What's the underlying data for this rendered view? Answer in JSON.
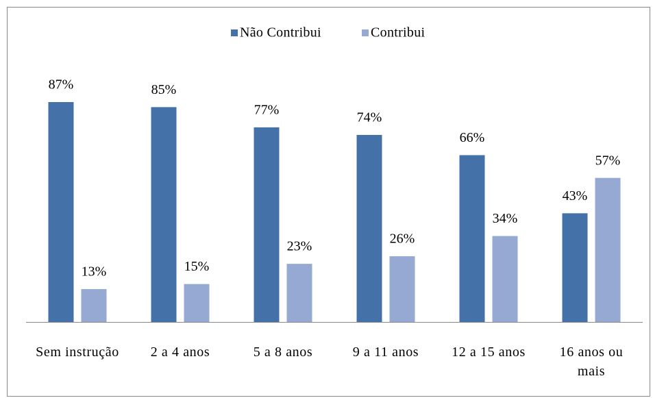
{
  "chart_data": {
    "type": "bar",
    "categories": [
      "Sem instrução",
      "2 a 4 anos",
      "5 a 8 anos",
      "9 a 11 anos",
      "12 a 15 anos",
      "16 anos ou mais"
    ],
    "series": [
      {
        "name": "Não Contribui",
        "color": "#4472a8",
        "values": [
          87,
          85,
          77,
          74,
          66,
          43
        ],
        "value_labels": [
          "87%",
          "85%",
          "77%",
          "74%",
          "66%",
          "43%"
        ]
      },
      {
        "name": "Contribui",
        "color": "#95a9d3",
        "values": [
          13,
          15,
          23,
          26,
          34,
          57
        ],
        "value_labels": [
          "13%",
          "15%",
          "23%",
          "26%",
          "34%",
          "57%"
        ]
      }
    ],
    "legend": "top"
  }
}
